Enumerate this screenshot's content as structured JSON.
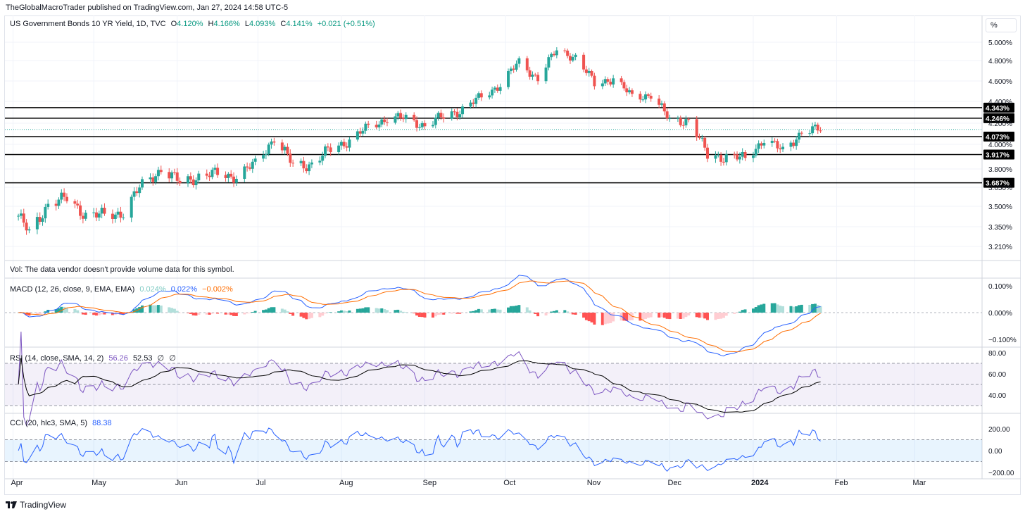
{
  "header": {
    "published": "TheGlobalMacroTrader published on TradingView.com, Jan 27, 2024 14:58 UTC-5",
    "axis_unit_button": "%"
  },
  "main_legend": {
    "symbol": "US Government Bonds 10 YR Yield, 1D, TVC",
    "o_label": "O",
    "o_value": "4.120%",
    "h_label": "H",
    "h_value": "4.166%",
    "l_label": "L",
    "l_value": "4.093%",
    "c_label": "C",
    "c_value": "4.141%",
    "change": "+0.021 (+0.51%)"
  },
  "vol_legend": {
    "text": "Vol: The data vendor doesn't provide volume data for this symbol."
  },
  "macd_legend": {
    "label": "MACD (12, 26, close, 9, EMA, EMA)",
    "hist": "0.024%",
    "macd": "0.022%",
    "signal": "−0.002%"
  },
  "rsi_legend": {
    "label": "RSI (14, close, SMA, 14, 2)",
    "rsi": "56.26",
    "ma": "52.53",
    "e1": "∅",
    "e2": "∅"
  },
  "cci_legend": {
    "label": "CCI (20, hlc3, SMA, 5)",
    "value": "88.38"
  },
  "footer": {
    "brand": "TradingView"
  },
  "colors": {
    "up": "#26a69a",
    "down": "#ef5350",
    "macd": "#2962ff",
    "signal": "#ff6d00",
    "rsi": "#7e57c2",
    "cci": "#2962ff",
    "text": "#131722"
  },
  "chart_data": [
    {
      "type": "candlestick",
      "title": "US Government Bonds 10 YR Yield, 1D, TVC",
      "x_tick_labels": [
        "Apr",
        "May",
        "Jun",
        "Jul",
        "Aug",
        "Sep",
        "Oct",
        "Nov",
        "Dec",
        "2024",
        "Feb",
        "Mar"
      ],
      "y_tick_labels": [
        "5.000%",
        "4.800%",
        "4.600%",
        "4.400%",
        "4.200%",
        "4.000%",
        "3.800%",
        "3.650%",
        "3.500%",
        "3.350%",
        "3.210%"
      ],
      "horizontal_levels": [
        "4.343%",
        "4.246%",
        "4.073%",
        "3.917%",
        "3.687%"
      ],
      "last_value_label": "4.141%",
      "grid": true,
      "close_path": [
        [
          "2023-04-03",
          3.43
        ],
        [
          "2023-04-07",
          3.3
        ],
        [
          "2023-04-14",
          3.52
        ],
        [
          "2023-04-21",
          3.56
        ],
        [
          "2023-04-28",
          3.44
        ],
        [
          "2023-05-05",
          3.43
        ],
        [
          "2023-05-12",
          3.46
        ],
        [
          "2023-05-19",
          3.67
        ],
        [
          "2023-05-26",
          3.8
        ],
        [
          "2023-06-02",
          3.69
        ],
        [
          "2023-06-09",
          3.74
        ],
        [
          "2023-06-16",
          3.76
        ],
        [
          "2023-06-23",
          3.74
        ],
        [
          "2023-06-30",
          3.84
        ],
        [
          "2023-07-07",
          4.06
        ],
        [
          "2023-07-14",
          3.83
        ],
        [
          "2023-07-21",
          3.84
        ],
        [
          "2023-07-28",
          3.96
        ],
        [
          "2023-08-04",
          4.04
        ],
        [
          "2023-08-11",
          4.16
        ],
        [
          "2023-08-18",
          4.25
        ],
        [
          "2023-08-25",
          4.24
        ],
        [
          "2023-09-01",
          4.18
        ],
        [
          "2023-09-08",
          4.26
        ],
        [
          "2023-09-15",
          4.33
        ],
        [
          "2023-09-22",
          4.44
        ],
        [
          "2023-09-29",
          4.57
        ],
        [
          "2023-10-06",
          4.78
        ],
        [
          "2023-10-13",
          4.63
        ],
        [
          "2023-10-20",
          4.91
        ],
        [
          "2023-10-27",
          4.84
        ],
        [
          "2023-11-03",
          4.57
        ],
        [
          "2023-11-10",
          4.63
        ],
        [
          "2023-11-17",
          4.44
        ],
        [
          "2023-11-24",
          4.47
        ],
        [
          "2023-12-01",
          4.22
        ],
        [
          "2023-12-08",
          4.23
        ],
        [
          "2023-12-15",
          3.91
        ],
        [
          "2023-12-22",
          3.9
        ],
        [
          "2023-12-29",
          3.88
        ],
        [
          "2024-01-05",
          4.05
        ],
        [
          "2024-01-12",
          3.94
        ],
        [
          "2024-01-19",
          4.12
        ],
        [
          "2024-01-26",
          4.14
        ]
      ]
    },
    {
      "type": "line",
      "name": "MACD (12, 26, close, 9, EMA, EMA)",
      "y_tick_labels": [
        "0.100%",
        "0.000%",
        "−0.100%"
      ]
    },
    {
      "type": "line",
      "name": "RSI (14, close, SMA, 14, 2)",
      "y_tick_labels": [
        "80.00",
        "60.00",
        "40.00"
      ],
      "band": [
        30,
        70
      ]
    },
    {
      "type": "line",
      "name": "CCI (20, hlc3, SMA, 5)",
      "y_tick_labels": [
        "200.00",
        "0.00",
        "−200.00"
      ],
      "band": [
        -100,
        100
      ]
    }
  ]
}
